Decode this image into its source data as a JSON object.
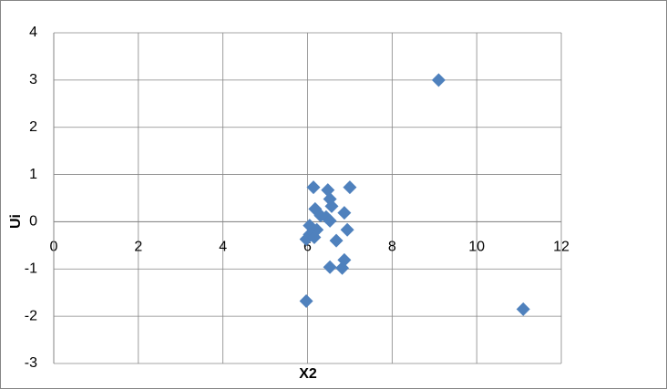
{
  "chart_data": {
    "type": "scatter",
    "x_label": "X2",
    "y_label": "Ui",
    "xlim": [
      0,
      12
    ],
    "xticks": [
      0,
      2,
      4,
      6,
      8,
      10,
      12
    ],
    "ylim": [
      -3,
      4
    ],
    "yticks": [
      -3,
      -2,
      -1,
      0,
      1,
      2,
      3,
      4
    ],
    "grid": true,
    "color": "#4f81bd",
    "x": [
      9.1,
      11.1,
      5.97,
      6.14,
      6.48,
      7.0,
      6.53,
      6.57,
      6.18,
      6.87,
      6.31,
      6.44,
      6.53,
      6.05,
      6.94,
      6.22,
      6.05,
      5.97,
      6.16,
      6.68,
      6.87,
      6.82,
      6.53
    ],
    "y": [
      3.0,
      -1.85,
      -1.68,
      0.73,
      0.67,
      0.73,
      0.48,
      0.33,
      0.27,
      0.19,
      0.13,
      0.1,
      0.02,
      -0.08,
      -0.17,
      -0.17,
      -0.27,
      -0.37,
      -0.33,
      -0.4,
      -0.81,
      -0.98,
      -0.96
    ]
  }
}
